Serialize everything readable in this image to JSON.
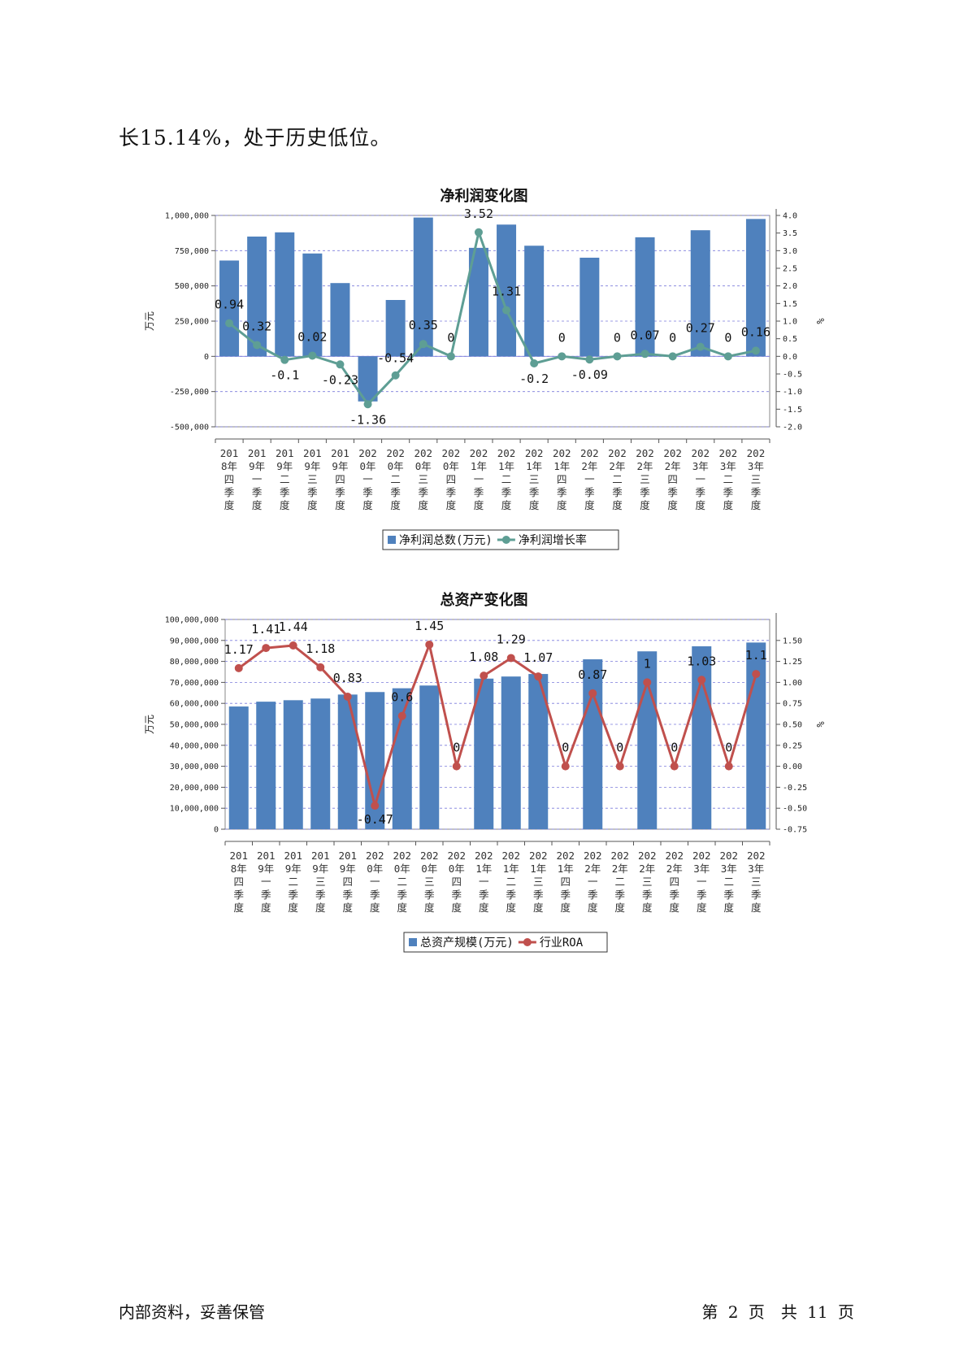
{
  "intro_text": "长15.14%，处于历史低位。",
  "footer": {
    "left": "内部资料，妥善保管",
    "right": "第 2 页　共 11 页"
  },
  "categories": [
    "2018年四季度",
    "2019年一季度",
    "2019年二季度",
    "2019年三季度",
    "2019年四季度",
    "2020年一季度",
    "2020年二季度",
    "2020年三季度",
    "2020年四季度",
    "2021年一季度",
    "2021年二季度",
    "2021年三季度",
    "2021年四季度",
    "2022年一季度",
    "2022年二季度",
    "2022年三季度",
    "2022年四季度",
    "2023年一季度",
    "2023年二季度",
    "2023年三季度"
  ],
  "chart_data": [
    {
      "type": "bar+line",
      "title": "净利润变化图",
      "ylabel_left": "万元",
      "ylabel_right": "%",
      "ylim_left": [
        -500000,
        1000000
      ],
      "ylim_right": [
        -2.0,
        4.0
      ],
      "left_ticks": [
        "1,000,000",
        "750,000",
        "500,000",
        "250,000",
        "0",
        "-250,000",
        "-500,000"
      ],
      "left_tick_values": [
        1000000,
        750000,
        500000,
        250000,
        0,
        -250000,
        -500000
      ],
      "right_ticks": [
        "4.0",
        "3.5",
        "3.0",
        "2.5",
        "2.0",
        "1.5",
        "1.0",
        "0.5",
        "0.0",
        "-0.5",
        "-1.0",
        "-1.5",
        "-2.0"
      ],
      "right_tick_values": [
        4.0,
        3.5,
        3.0,
        2.5,
        2.0,
        1.5,
        1.0,
        0.5,
        0.0,
        -0.5,
        -1.0,
        -1.5,
        -2.0
      ],
      "grid": true,
      "legend_position": "bottom",
      "series": [
        {
          "name": "净利润总数(万元)",
          "kind": "bar",
          "axis": "left",
          "color": "#4f81bd",
          "values": [
            680000,
            850000,
            880000,
            730000,
            520000,
            -320000,
            400000,
            985000,
            null,
            770000,
            935000,
            785000,
            null,
            700000,
            null,
            845000,
            null,
            895000,
            null,
            975000
          ]
        },
        {
          "name": "净利润增长率",
          "kind": "line",
          "axis": "right",
          "color": "#5e9e94",
          "values": [
            0.94,
            0.32,
            -0.1,
            0.02,
            -0.23,
            -1.36,
            -0.54,
            0.35,
            0,
            3.52,
            1.31,
            -0.2,
            0,
            -0.09,
            0,
            0.07,
            0,
            0.27,
            0,
            0.16
          ],
          "labels": [
            "0.94",
            "0.32",
            "-0.1",
            "0.02",
            "-0.23",
            "-1.36",
            "-0.54",
            "0.35",
            "0",
            "3.52",
            "1.31",
            "-0.2",
            "0",
            "-0.09",
            "0",
            "0.07",
            "0",
            "0.27",
            "0",
            "0.16"
          ]
        }
      ]
    },
    {
      "type": "bar+line",
      "title": "总资产变化图",
      "ylabel_left": "万元",
      "ylabel_right": "%",
      "ylim_left": [
        0,
        100000000
      ],
      "ylim_right": [
        -0.75,
        1.75
      ],
      "left_ticks": [
        "100,000,000",
        "90,000,000",
        "80,000,000",
        "70,000,000",
        "60,000,000",
        "50,000,000",
        "40,000,000",
        "30,000,000",
        "20,000,000",
        "10,000,000",
        "0"
      ],
      "left_tick_values": [
        100000000,
        90000000,
        80000000,
        70000000,
        60000000,
        50000000,
        40000000,
        30000000,
        20000000,
        10000000,
        0
      ],
      "right_ticks": [
        "1.50",
        "1.25",
        "1.00",
        "0.75",
        "0.50",
        "0.25",
        "0.00",
        "-0.25",
        "-0.50",
        "-0.75"
      ],
      "right_tick_values": [
        1.5,
        1.25,
        1.0,
        0.75,
        0.5,
        0.25,
        0.0,
        -0.25,
        -0.5,
        -0.75
      ],
      "grid": true,
      "legend_position": "bottom",
      "series": [
        {
          "name": "总资产规模(万元)",
          "kind": "bar",
          "axis": "left",
          "color": "#4f81bd",
          "values": [
            58500000,
            60800000,
            61500000,
            62300000,
            64200000,
            65400000,
            67200000,
            68500000,
            null,
            71800000,
            72800000,
            74000000,
            null,
            81000000,
            null,
            84800000,
            null,
            87200000,
            null,
            89000000
          ]
        },
        {
          "name": "行业ROA",
          "kind": "line",
          "axis": "right",
          "color": "#c0504d",
          "values": [
            1.17,
            1.41,
            1.44,
            1.18,
            0.83,
            -0.47,
            0.6,
            1.45,
            0,
            1.08,
            1.29,
            1.07,
            0,
            0.87,
            0,
            1,
            0,
            1.03,
            0,
            1.1
          ],
          "labels": [
            "1.17",
            "1.41",
            "1.44",
            "1.18",
            "0.83",
            "-0.47",
            "0.6",
            "1.45",
            "0",
            "1.08",
            "1.29",
            "1.07",
            "0",
            "0.87",
            "0",
            "1",
            "0",
            "1.03",
            "0",
            "1.1"
          ]
        }
      ]
    }
  ]
}
